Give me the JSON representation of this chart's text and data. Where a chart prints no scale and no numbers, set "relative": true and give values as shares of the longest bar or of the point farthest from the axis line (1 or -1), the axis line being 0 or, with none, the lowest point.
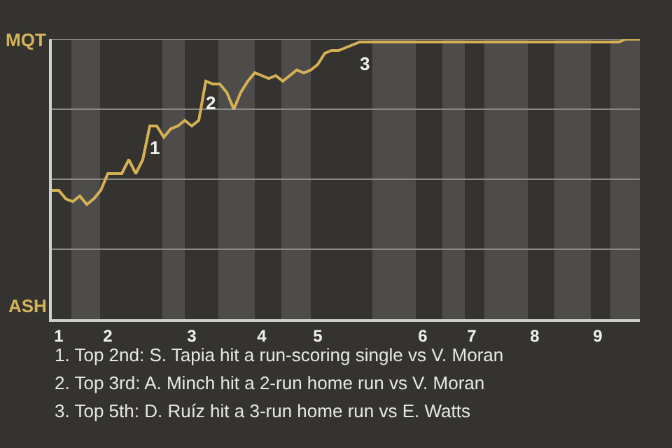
{
  "chart_data": {
    "type": "line",
    "relative": true,
    "categories": [
      null,
      "1",
      null,
      null,
      null,
      null,
      null,
      null,
      "2",
      null,
      null,
      null,
      null,
      null,
      null,
      null,
      null,
      null,
      null,
      null,
      "3",
      null,
      null,
      null,
      null,
      null,
      null,
      null,
      null,
      null,
      "4",
      null,
      null,
      null,
      null,
      null,
      null,
      null,
      "5",
      null,
      null,
      null,
      null,
      null,
      null,
      null,
      null,
      null,
      null,
      null,
      null,
      null,
      null,
      "6",
      null,
      null,
      null,
      null,
      null,
      null,
      "7",
      null,
      null,
      null,
      null,
      null,
      null,
      null,
      null,
      "8",
      null,
      null,
      null,
      null,
      null,
      null,
      null,
      null,
      "9",
      null,
      null,
      null,
      null,
      null,
      null
    ],
    "series": [
      {
        "color": "#d4b155",
        "values": [
          0.46,
          0.46,
          0.43,
          0.42,
          0.44,
          0.41,
          0.43,
          0.46,
          0.52,
          0.52,
          0.52,
          0.57,
          0.52,
          0.57,
          0.69,
          0.69,
          0.65,
          0.68,
          0.69,
          0.71,
          0.69,
          0.71,
          0.85,
          0.84,
          0.84,
          0.81,
          0.75,
          0.81,
          0.85,
          0.88,
          0.87,
          0.86,
          0.87,
          0.85,
          0.87,
          0.89,
          0.88,
          0.89,
          0.91,
          0.95,
          0.96,
          0.96,
          0.97,
          0.98,
          0.99,
          0.99,
          0.99,
          0.99,
          0.99,
          0.99,
          0.99,
          0.99,
          0.99,
          0.99,
          0.99,
          0.99,
          0.99,
          0.99,
          0.99,
          0.99,
          0.99,
          0.99,
          0.99,
          0.99,
          0.99,
          0.99,
          0.99,
          0.99,
          0.99,
          0.99,
          0.99,
          0.99,
          0.99,
          0.99,
          0.99,
          0.99,
          0.99,
          0.99,
          0.99,
          0.99,
          0.99,
          0.99,
          1.0,
          1.0,
          1.0
        ]
      }
    ],
    "marker": "none",
    "line_style": "solid",
    "ref_lines": [
      {
        "axis": "y",
        "value": 0.25,
        "color": "#8a8886"
      },
      {
        "axis": "y",
        "value": 0.5,
        "color": "#8a8886"
      },
      {
        "axis": "y",
        "value": 0.75,
        "color": "#8a8886"
      },
      {
        "axis": "y",
        "value": 1.0,
        "color": "#8a8886"
      }
    ],
    "annotations": [
      "MQT",
      "ASH",
      {
        "text": "1",
        "y": 0.69
      },
      {
        "text": "2",
        "y": 0.85
      },
      {
        "text": "3",
        "y": 0.99
      },
      "1. Top 2nd: S. Tapia hit a run-scoring single vs V. Moran",
      "2. Top 3rd: A. Minch hit a 2-run home run vs V. Moran",
      "3. Top 5th: D. Ruíz hit a 3-run home run vs E. Watts"
    ]
  }
}
